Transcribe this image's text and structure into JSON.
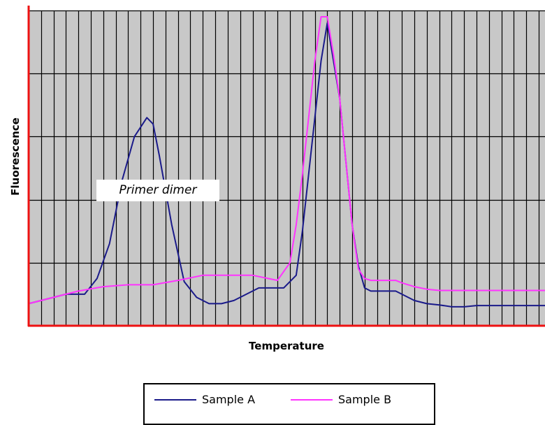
{
  "chart_data": {
    "type": "line",
    "xlabel": "Temperature",
    "ylabel": "Fluorescence",
    "grid": true,
    "legend_position": "bottom",
    "annotation": {
      "text": "Primer dimer",
      "x": 19,
      "y": 3.1
    },
    "xlim": [
      0,
      83
    ],
    "ylim": [
      0,
      5
    ],
    "series": [
      {
        "name": "Sample A",
        "color": "#1a1a8a",
        "x": [
          0,
          4,
          6,
          9,
          11,
          13,
          15,
          17,
          19,
          20,
          21,
          23,
          25,
          27,
          29,
          31,
          33,
          35,
          37,
          39,
          41,
          43,
          44,
          45,
          46,
          47,
          48,
          49,
          50,
          51,
          52,
          53,
          54,
          55,
          56,
          57,
          58,
          59,
          60,
          62,
          64,
          66,
          68,
          70,
          72,
          74,
          76,
          78,
          80,
          83
        ],
        "y": [
          0.35,
          0.45,
          0.5,
          0.5,
          0.75,
          1.3,
          2.3,
          3.0,
          3.3,
          3.2,
          2.7,
          1.6,
          0.7,
          0.45,
          0.35,
          0.35,
          0.4,
          0.5,
          0.6,
          0.6,
          0.6,
          0.8,
          1.5,
          2.4,
          3.3,
          4.2,
          4.8,
          4.2,
          3.6,
          2.6,
          1.6,
          0.95,
          0.6,
          0.55,
          0.55,
          0.55,
          0.55,
          0.55,
          0.5,
          0.4,
          0.35,
          0.33,
          0.3,
          0.3,
          0.32,
          0.32,
          0.32,
          0.32,
          0.32,
          0.32
        ]
      },
      {
        "name": "Sample B",
        "color": "#ff33ff",
        "x": [
          0,
          4,
          8,
          12,
          16,
          20,
          24,
          28,
          32,
          36,
          40,
          42,
          43,
          44,
          45,
          46,
          47,
          48,
          49,
          50,
          51,
          52,
          53,
          54,
          55,
          56,
          57,
          58,
          59,
          60,
          62,
          64,
          66,
          68,
          70,
          72,
          74,
          76,
          78,
          80,
          83
        ],
        "y": [
          0.35,
          0.45,
          0.55,
          0.62,
          0.65,
          0.65,
          0.72,
          0.8,
          0.8,
          0.8,
          0.72,
          1.0,
          1.6,
          2.4,
          3.3,
          4.2,
          4.9,
          4.9,
          4.3,
          3.6,
          2.6,
          1.6,
          0.9,
          0.75,
          0.72,
          0.72,
          0.72,
          0.72,
          0.72,
          0.68,
          0.62,
          0.58,
          0.56,
          0.56,
          0.56,
          0.56,
          0.56,
          0.56,
          0.56,
          0.56,
          0.56
        ]
      }
    ]
  }
}
